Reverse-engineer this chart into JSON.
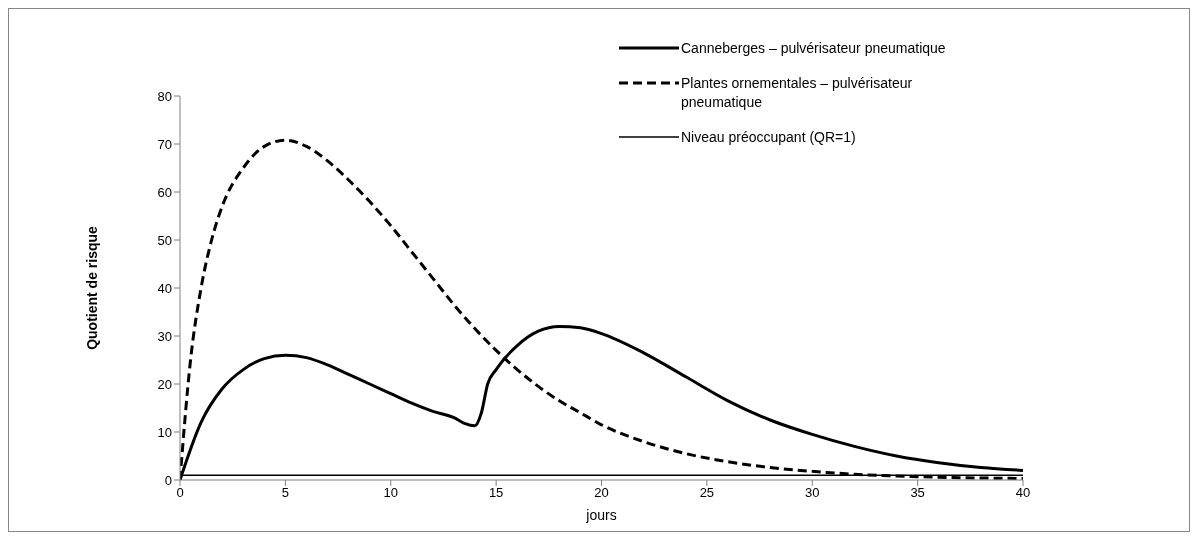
{
  "chart_data": {
    "type": "line",
    "xlabel": "jours",
    "ylabel": "Quotient de risque",
    "xlim": [
      0,
      40
    ],
    "xticks": [
      0,
      5,
      10,
      15,
      20,
      25,
      30,
      35,
      40
    ],
    "ylim": [
      0,
      80
    ],
    "yticks": [
      0,
      10,
      20,
      30,
      40,
      50,
      60,
      70,
      80
    ],
    "legend": "top right",
    "marker": "none",
    "series": [
      {
        "name": "Canneberges – pulvérisateur pneumatique",
        "color": "#000000",
        "line_style": "solid",
        "x": [
          0,
          1,
          2,
          3,
          4,
          5,
          6,
          7,
          8,
          9,
          10,
          11,
          12,
          13,
          13.5,
          14,
          14.3,
          14.6,
          15,
          16,
          17,
          18,
          19,
          20,
          22,
          24,
          26,
          28,
          30,
          32,
          34,
          36,
          38,
          40
        ],
        "values": [
          0,
          12,
          19,
          23,
          25.3,
          26,
          25.5,
          24,
          22,
          20,
          18,
          16,
          14.3,
          13,
          11.8,
          11.3,
          14,
          20,
          23,
          28,
          31,
          32,
          31.7,
          30.5,
          26.5,
          21.5,
          16.5,
          12.5,
          9.5,
          7,
          5,
          3.6,
          2.6,
          2
        ]
      },
      {
        "name": "Plantes ornementales – pulvérisateur pneumatique",
        "color": "#000000",
        "line_style": "dashed",
        "x": [
          0,
          0.5,
          1,
          1.5,
          2,
          3,
          4,
          5,
          6,
          7,
          8,
          9,
          10,
          11,
          12,
          13,
          14,
          15,
          16,
          17,
          18,
          19,
          20,
          22,
          24,
          26,
          28,
          30,
          32,
          35,
          40
        ],
        "values": [
          0,
          25,
          40,
          50,
          57,
          65,
          69.5,
          70.8,
          69.5,
          66.5,
          62.5,
          58,
          53,
          47.5,
          42,
          36.5,
          31.5,
          27,
          23,
          19.5,
          16.5,
          14,
          11.5,
          8,
          5.5,
          3.8,
          2.6,
          1.8,
          1.2,
          0.7,
          0.3
        ]
      },
      {
        "name": "Niveau préoccupant (QR=1)",
        "color": "#000000",
        "line_style": "solid",
        "x": [
          0,
          40
        ],
        "values": [
          1,
          1
        ]
      }
    ]
  }
}
